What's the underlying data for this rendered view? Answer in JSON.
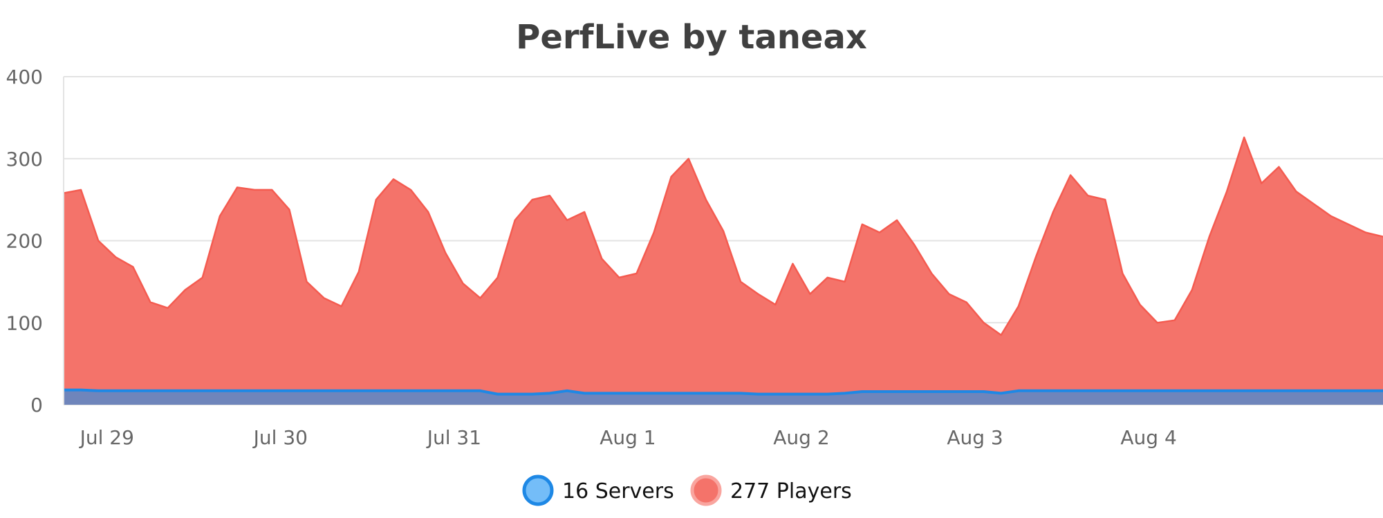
{
  "chart_data": {
    "type": "area",
    "title": "PerfLive by taneax",
    "xlabel": "",
    "ylabel": "",
    "ylim": [
      0,
      400
    ],
    "y_ticks": [
      "0",
      "100",
      "200",
      "300",
      "400"
    ],
    "x_ticks": [
      {
        "label": "Jul 29",
        "x": 0.25
      },
      {
        "label": "Jul 30",
        "x": 1.25
      },
      {
        "label": "Jul 31",
        "x": 2.25
      },
      {
        "label": "Aug 1",
        "x": 3.25
      },
      {
        "label": "Aug 2",
        "x": 4.25
      },
      {
        "label": "Aug 3",
        "x": 5.25
      },
      {
        "label": "Aug 4",
        "x": 6.25
      }
    ],
    "grid": true,
    "legend_placement": "bottom-center",
    "x": [
      0.0,
      0.1,
      0.2,
      0.3,
      0.4,
      0.5,
      0.6,
      0.7,
      0.8,
      0.9,
      1.0,
      1.1,
      1.2,
      1.3,
      1.4,
      1.5,
      1.6,
      1.7,
      1.8,
      1.9,
      2.0,
      2.1,
      2.2,
      2.3,
      2.4,
      2.5,
      2.6,
      2.7,
      2.8,
      2.9,
      3.0,
      3.1,
      3.2,
      3.3,
      3.4,
      3.5,
      3.6,
      3.7,
      3.8,
      3.9,
      4.0,
      4.1,
      4.2,
      4.3,
      4.4,
      4.5,
      4.6,
      4.7,
      4.8,
      4.9,
      5.0,
      5.1,
      5.2,
      5.3,
      5.4,
      5.5,
      5.6,
      5.7,
      5.8,
      5.9,
      6.0,
      6.1,
      6.2,
      6.3,
      6.4,
      6.5,
      6.6,
      6.7,
      6.8,
      6.9,
      7.0,
      7.1,
      7.2,
      7.3,
      7.4,
      7.5,
      7.6
    ],
    "series": [
      {
        "name": "Players",
        "legend_label": "277 Players",
        "color": "#f45b50",
        "fill": "#f4736a",
        "values": [
          258,
          262,
          200,
          180,
          168,
          125,
          118,
          140,
          155,
          230,
          265,
          262,
          262,
          238,
          150,
          130,
          120,
          162,
          250,
          275,
          262,
          235,
          185,
          148,
          130,
          155,
          225,
          250,
          255,
          225,
          235,
          178,
          155,
          160,
          210,
          278,
          300,
          250,
          212,
          150,
          135,
          122,
          172,
          135,
          155,
          150,
          220,
          210,
          225,
          195,
          160,
          135,
          125,
          100,
          85,
          120,
          180,
          235,
          280,
          255,
          250,
          160,
          122,
          100,
          103,
          140,
          205,
          260,
          326,
          270,
          290,
          260,
          245,
          230,
          220,
          210,
          205
        ]
      },
      {
        "name": "Servers",
        "legend_label": "16 Servers",
        "color": "#1e88e5",
        "fill": "#6f85bb",
        "values": [
          18,
          18,
          17,
          17,
          17,
          17,
          17,
          17,
          17,
          17,
          17,
          17,
          17,
          17,
          17,
          17,
          17,
          17,
          17,
          17,
          17,
          17,
          17,
          17,
          17,
          13,
          13,
          13,
          14,
          17,
          14,
          14,
          14,
          14,
          14,
          14,
          14,
          14,
          14,
          14,
          13,
          13,
          13,
          13,
          13,
          14,
          16,
          16,
          16,
          16,
          16,
          16,
          16,
          16,
          14,
          17,
          17,
          17,
          17,
          17,
          17,
          17,
          17,
          17,
          17,
          17,
          17,
          17,
          17,
          17,
          17,
          17,
          17,
          17,
          17,
          17,
          17
        ]
      }
    ]
  }
}
